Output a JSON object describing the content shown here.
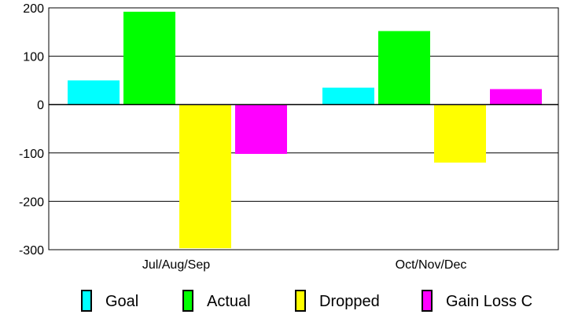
{
  "chart_data": {
    "type": "bar",
    "categories": [
      "Jul/Aug/Sep",
      "Oct/Nov/Dec"
    ],
    "series": [
      {
        "name": "Goal",
        "color": "#00ffff",
        "values": [
          50,
          35
        ]
      },
      {
        "name": "Actual",
        "color": "#00ff00",
        "values": [
          192,
          152
        ]
      },
      {
        "name": "Dropped",
        "color": "#ffff00",
        "values": [
          -297,
          -120
        ]
      },
      {
        "name": "Gain Loss C",
        "color": "#ff00ff",
        "values": [
          -102,
          32
        ]
      }
    ],
    "ylim": [
      -300,
      200
    ],
    "yticks": [
      200,
      100,
      0,
      -100,
      -200,
      -300
    ],
    "ytick_labels": [
      "200",
      "100",
      "0",
      "-100",
      "-200",
      "-300"
    ],
    "grid": true,
    "legend_position": "bottom"
  }
}
